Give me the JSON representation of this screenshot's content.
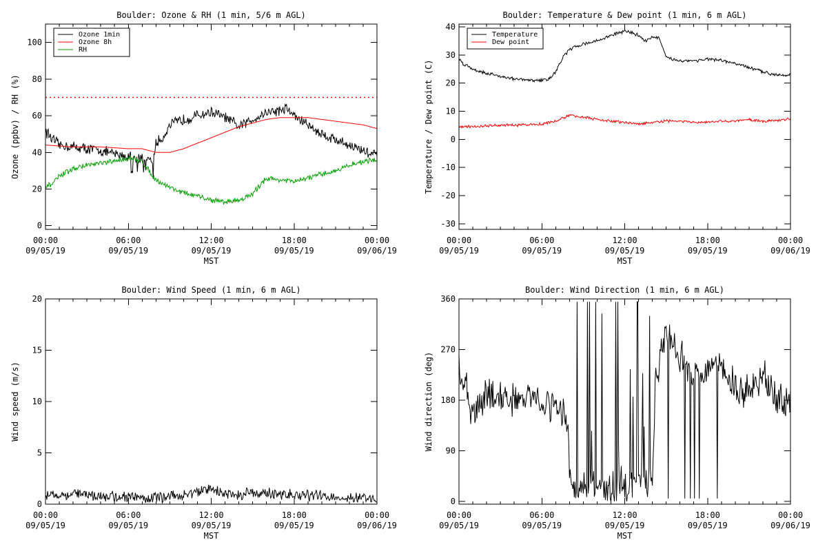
{
  "page": {
    "background": "#ffffff"
  },
  "chart_data": [
    {
      "type": "line",
      "title": "Boulder: Ozone & RH (1 min, 5/6 m AGL)",
      "xlabel": "MST",
      "ylabel": "Ozone (ppbv) / RH (%)",
      "xlim": [
        "09/05/19 00:00",
        "09/06/19 00:00"
      ],
      "ylim": [
        -2,
        110
      ],
      "yticks": [
        0,
        20,
        40,
        60,
        80,
        100
      ],
      "xticks": [
        {
          "time": "00:00",
          "date": "09/05/19"
        },
        {
          "time": "06:00",
          "date": "09/05/19"
        },
        {
          "time": "12:00",
          "date": "09/05/19"
        },
        {
          "time": "18:00",
          "date": "09/05/19"
        },
        {
          "time": "00:00",
          "date": "09/06/19"
        }
      ],
      "legend_position": "top-left",
      "reference_line": {
        "y": 70,
        "color": "#ff0000",
        "style": "dotted"
      },
      "series": [
        {
          "name": "Ozone 1min",
          "color": "#000000",
          "noise": 2.5,
          "x": [
            0,
            0.5,
            1,
            2,
            3,
            4,
            5,
            6,
            7,
            7.5,
            7.8,
            8,
            8.5,
            9,
            10,
            11,
            12,
            13,
            14,
            15,
            16,
            17,
            17.5,
            18,
            19,
            20,
            21,
            22,
            23,
            24
          ],
          "y": [
            52,
            47,
            44,
            43,
            42,
            41,
            39,
            38,
            37,
            36,
            34,
            45,
            48,
            55,
            58,
            60,
            62,
            59,
            54,
            58,
            62,
            63,
            64,
            60,
            55,
            50,
            47,
            44,
            41,
            38
          ]
        },
        {
          "name": "Ozone 8h",
          "color": "#ff0000",
          "noise": 0,
          "x": [
            0,
            2,
            4,
            6,
            7,
            8,
            9,
            10,
            11,
            12,
            13,
            14,
            15,
            16,
            17,
            18,
            19,
            20,
            21,
            22,
            23,
            24
          ],
          "y": [
            44,
            43,
            43,
            42,
            42,
            40,
            40,
            42,
            45,
            48,
            51,
            54,
            56,
            58,
            59,
            59,
            59,
            58,
            57,
            56,
            55,
            53
          ]
        },
        {
          "name": "RH",
          "color": "#00a000",
          "noise": 1.2,
          "x": [
            0,
            0.5,
            1,
            2,
            3,
            4,
            5,
            6,
            7,
            7.5,
            8,
            9,
            10,
            11,
            12,
            13,
            14,
            15,
            15.5,
            16,
            17,
            18,
            19,
            20,
            21,
            22,
            23,
            24
          ],
          "y": [
            21,
            23,
            27,
            31,
            33,
            34,
            35,
            37,
            35,
            30,
            25,
            21,
            18,
            16,
            14,
            13,
            14,
            17,
            22,
            26,
            25,
            24,
            26,
            28,
            30,
            33,
            35,
            36
          ]
        }
      ]
    },
    {
      "type": "line",
      "title": "Boulder: Temperature & Dew point (1 min, 6 m AGL)",
      "xlabel": "MST",
      "ylabel": "Temperature / Dew point (C)",
      "xlim": [
        "09/05/19 00:00",
        "09/06/19 00:00"
      ],
      "ylim": [
        -32,
        41
      ],
      "yticks": [
        -30,
        -20,
        -10,
        0,
        10,
        20,
        30,
        40
      ],
      "xticks": [
        {
          "time": "00:00",
          "date": "09/05/19"
        },
        {
          "time": "06:00",
          "date": "09/05/19"
        },
        {
          "time": "12:00",
          "date": "09/05/19"
        },
        {
          "time": "18:00",
          "date": "09/05/19"
        },
        {
          "time": "00:00",
          "date": "09/06/19"
        }
      ],
      "legend_position": "top-left",
      "series": [
        {
          "name": "Temperature",
          "color": "#000000",
          "noise": 0.5,
          "x": [
            0,
            0.3,
            1,
            2,
            3,
            4,
            5,
            6,
            6.5,
            7,
            7.5,
            8,
            9,
            10,
            11,
            12,
            12.5,
            13,
            13.5,
            14,
            14.5,
            15,
            16,
            17,
            18,
            19,
            20,
            21,
            22,
            23,
            24
          ],
          "y": [
            28.5,
            27,
            25,
            23.5,
            22.5,
            21.5,
            21,
            21,
            21.5,
            24,
            29,
            32,
            34,
            35,
            37,
            38.5,
            38,
            37,
            35,
            36.5,
            36,
            29,
            28,
            28,
            28.5,
            28,
            27,
            25.5,
            24,
            23,
            23
          ]
        },
        {
          "name": "Dew point",
          "color": "#ff0000",
          "noise": 0.4,
          "x": [
            0,
            1,
            2,
            3,
            4,
            5,
            6,
            7,
            8,
            9,
            10,
            11,
            12,
            13,
            14,
            15,
            16,
            17,
            18,
            19,
            20,
            21,
            22,
            23,
            24
          ],
          "y": [
            4.5,
            4.5,
            4.8,
            5,
            5,
            5.2,
            5.5,
            6.5,
            8.5,
            8,
            7,
            6.5,
            6,
            5.5,
            6,
            6.5,
            6.5,
            6,
            6,
            6.5,
            6.5,
            7,
            6.5,
            6.8,
            7.2
          ]
        }
      ]
    },
    {
      "type": "line",
      "title": "Boulder: Wind Speed (1 min, 6 m AGL)",
      "xlabel": "MST",
      "ylabel": "Wind speed (m/s)",
      "xlim": [
        "09/05/19 00:00",
        "09/06/19 00:00"
      ],
      "ylim": [
        0,
        20
      ],
      "yticks": [
        0,
        5,
        10,
        15,
        20
      ],
      "xticks": [
        {
          "time": "00:00",
          "date": "09/05/19"
        },
        {
          "time": "06:00",
          "date": "09/05/19"
        },
        {
          "time": "12:00",
          "date": "09/05/19"
        },
        {
          "time": "18:00",
          "date": "09/05/19"
        },
        {
          "time": "00:00",
          "date": "09/06/19"
        }
      ],
      "series": [
        {
          "color": "#000000",
          "noise": 0.45,
          "x": [
            0,
            2,
            4,
            6,
            8,
            10,
            11,
            12,
            13,
            14,
            15,
            16,
            18,
            20,
            22,
            24
          ],
          "y": [
            0.9,
            1.0,
            0.8,
            0.7,
            0.6,
            0.9,
            1.2,
            1.5,
            1.0,
            0.9,
            1.2,
            1.0,
            0.9,
            0.8,
            0.6,
            0.5
          ]
        }
      ]
    },
    {
      "type": "line",
      "title": "Boulder: Wind Direction (1 min, 6 m AGL)",
      "xlabel": "MST",
      "ylabel": "Wind direction (deg)",
      "xlim": [
        "09/05/19 00:00",
        "09/06/19 00:00"
      ],
      "ylim": [
        -5,
        360
      ],
      "yticks": [
        0,
        90,
        180,
        270,
        360
      ],
      "xticks": [
        {
          "time": "00:00",
          "date": "09/05/19"
        },
        {
          "time": "06:00",
          "date": "09/05/19"
        },
        {
          "time": "12:00",
          "date": "09/05/19"
        },
        {
          "time": "18:00",
          "date": "09/05/19"
        },
        {
          "time": "00:00",
          "date": "09/06/19"
        }
      ],
      "series": [
        {
          "color": "#000000",
          "noise": 25,
          "x": [
            0,
            0.5,
            1,
            2,
            3,
            4,
            5,
            6,
            7,
            7.9,
            8,
            9,
            10,
            11,
            12,
            13,
            14,
            14.2,
            14.6,
            15,
            16,
            17,
            18,
            19,
            20,
            21,
            22,
            23,
            24
          ],
          "y": [
            230,
            200,
            150,
            190,
            185,
            180,
            185,
            180,
            170,
            150,
            30,
            25,
            20,
            20,
            25,
            30,
            30,
            200,
            270,
            300,
            260,
            220,
            240,
            250,
            200,
            190,
            230,
            180,
            180
          ]
        }
      ]
    }
  ]
}
